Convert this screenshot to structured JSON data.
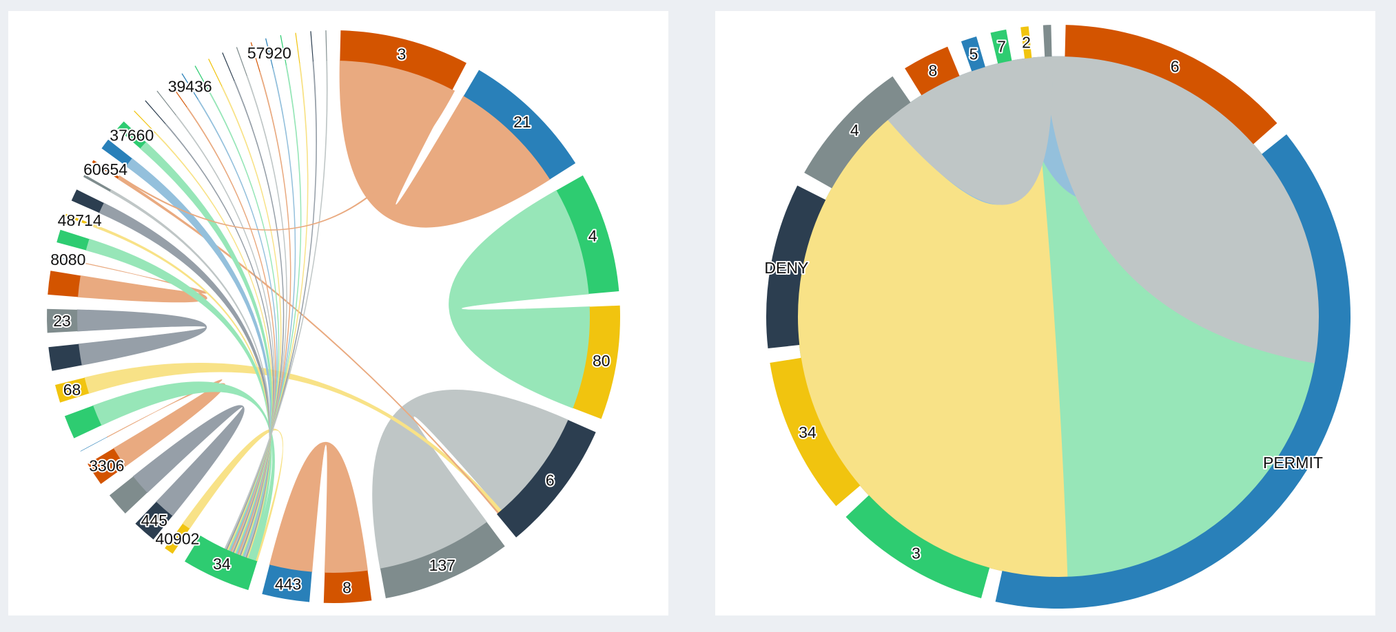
{
  "chart_data": [
    {
      "type": "chord",
      "groups": [
        {
          "label": "3",
          "value": 3.0,
          "color": "#d35400"
        },
        {
          "label": "21",
          "value": 3.1,
          "color": "#2980b9"
        },
        {
          "label": "4",
          "value": 2.8,
          "color": "#2ecc71"
        },
        {
          "label": "80",
          "value": 2.65,
          "color": "#f1c40f"
        },
        {
          "label": "6",
          "value": 3.05,
          "color": "#2c3e50"
        },
        {
          "label": "137",
          "value": 3.0,
          "color": "#7f8c8d"
        },
        {
          "label": "8",
          "value": 1.1,
          "color": "#d35400"
        },
        {
          "label": "443",
          "value": 1.1,
          "color": "#2980b9"
        },
        {
          "label": "34",
          "value": 1.6,
          "color": "#2ecc71"
        },
        {
          "label": "40902",
          "value": 0.22,
          "color": "#f1c40f"
        },
        {
          "label": "445",
          "value": 0.55,
          "color": "#2c3e50"
        },
        {
          "label": "",
          "value": 0.55,
          "color": "#7f8c8d"
        },
        {
          "label": "3306",
          "value": 0.55,
          "color": "#d35400"
        },
        {
          "label": "",
          "value": 0.01,
          "color": "#2980b9"
        },
        {
          "label": "",
          "value": 0.55,
          "color": "#2ecc71"
        },
        {
          "label": "68",
          "value": 0.42,
          "color": "#f1c40f"
        },
        {
          "label": "",
          "value": 0.55,
          "color": "#2c3e50"
        },
        {
          "label": "23",
          "value": 0.55,
          "color": "#7f8c8d"
        },
        {
          "label": "",
          "value": 0.55,
          "color": "#d35400"
        },
        {
          "label": "8080",
          "value": 0.01,
          "color": "#2980b9"
        },
        {
          "label": "",
          "value": 0.3,
          "color": "#2ecc71"
        },
        {
          "label": "48714",
          "value": 0.06,
          "color": "#f1c40f"
        },
        {
          "label": "",
          "value": 0.28,
          "color": "#2c3e50"
        },
        {
          "label": "",
          "value": 0.06,
          "color": "#7f8c8d"
        },
        {
          "label": "60654",
          "value": 0.06,
          "color": "#d35400"
        },
        {
          "label": "",
          "value": 0.25,
          "color": "#2980b9"
        },
        {
          "label": "37660",
          "value": 0.22,
          "color": "#2ecc71"
        },
        {
          "label": "",
          "value": 0.02,
          "color": "#f1c40f"
        },
        {
          "label": "",
          "value": 0.02,
          "color": "#2c3e50"
        },
        {
          "label": "",
          "value": 0.02,
          "color": "#7f8c8d"
        },
        {
          "label": "",
          "value": 0.02,
          "color": "#d35400"
        },
        {
          "label": "39436",
          "value": 0.02,
          "color": "#2980b9"
        },
        {
          "label": "",
          "value": 0.02,
          "color": "#2ecc71"
        },
        {
          "label": "",
          "value": 0.02,
          "color": "#f1c40f"
        },
        {
          "label": "",
          "value": 0.02,
          "color": "#2c3e50"
        },
        {
          "label": "",
          "value": 0.02,
          "color": "#7f8c8d"
        },
        {
          "label": "",
          "value": 0.02,
          "color": "#d35400"
        },
        {
          "label": "57920",
          "value": 0.02,
          "color": "#2980b9"
        },
        {
          "label": "",
          "value": 0.02,
          "color": "#2ecc71"
        },
        {
          "label": "",
          "value": 0.02,
          "color": "#f1c40f"
        },
        {
          "label": "",
          "value": 0.02,
          "color": "#2c3e50"
        },
        {
          "label": "",
          "value": 0.02,
          "color": "#7f8c8d"
        }
      ],
      "chords": [
        {
          "source": 0,
          "source_share": 1.0,
          "target": 1,
          "target_share": 1.0
        },
        {
          "source": 2,
          "source_share": 1.0,
          "target": 3,
          "target_share": 1.0
        },
        {
          "source": 5,
          "source_share": 1.0,
          "target": 4,
          "target_share": 0.95
        },
        {
          "source": 6,
          "source_share": 1.0,
          "target": 7,
          "target_share": 1.0
        },
        {
          "source": 9,
          "source_share": 1.0,
          "target": 8,
          "target_share": 0.03
        },
        {
          "source": 10,
          "source_share": 1.0,
          "target": 11,
          "target_share": 1.0
        },
        {
          "source": 12,
          "source_share": 1.0,
          "target": 13,
          "target_share": 1.0
        },
        {
          "source": 14,
          "source_share": 1.0,
          "target": 8,
          "target_share": 0.08
        },
        {
          "source": 15,
          "source_share": 1.0,
          "target": 4,
          "target_share": 0.03
        },
        {
          "source": 16,
          "source_share": 1.0,
          "target": 17,
          "target_share": 1.0
        },
        {
          "source": 18,
          "source_share": 1.0,
          "target": 19,
          "target_share": 1.0
        },
        {
          "source": 20,
          "source_share": 1.0,
          "target": 8,
          "target_share": 0.05
        },
        {
          "source": 21,
          "source_share": 1.0,
          "target": 8,
          "target_share": 0.02
        },
        {
          "source": 22,
          "source_share": 1.0,
          "target": 8,
          "target_share": 0.02
        },
        {
          "source": 23,
          "source_share": 1.0,
          "target": 8,
          "target_share": 0.02
        },
        {
          "source": 24,
          "source_share": 1.0,
          "target": 4,
          "target_share": 0.01
        },
        {
          "source": 25,
          "source_share": 1.0,
          "target": 8,
          "target_share": 0.02
        },
        {
          "source": 26,
          "source_share": 1.0,
          "target": 8,
          "target_share": 0.02
        },
        {
          "source": 27,
          "source_share": 1.0,
          "target": 8,
          "target_share": 0.02
        },
        {
          "source": 28,
          "source_share": 1.0,
          "target": 8,
          "target_share": 0.02
        },
        {
          "source": 29,
          "source_share": 1.0,
          "target": 8,
          "target_share": 0.02
        },
        {
          "source": 30,
          "source_share": 1.0,
          "target": 8,
          "target_share": 0.02
        },
        {
          "source": 31,
          "source_share": 1.0,
          "target": 8,
          "target_share": 0.02
        },
        {
          "source": 32,
          "source_share": 1.0,
          "target": 8,
          "target_share": 0.02
        },
        {
          "source": 33,
          "source_share": 1.0,
          "target": 8,
          "target_share": 0.02
        },
        {
          "source": 34,
          "source_share": 1.0,
          "target": 8,
          "target_share": 0.02
        },
        {
          "source": 35,
          "source_share": 1.0,
          "target": 8,
          "target_share": 0.02
        },
        {
          "source": 36,
          "source_share": 1.0,
          "target": 8,
          "target_share": 0.02
        },
        {
          "source": 37,
          "source_share": 1.0,
          "target": 8,
          "target_share": 0.02
        },
        {
          "source": 38,
          "source_share": 1.0,
          "target": 8,
          "target_share": 0.02
        },
        {
          "source": 39,
          "source_share": 1.0,
          "target": 8,
          "target_share": 0.02
        },
        {
          "source": 40,
          "source_share": 1.0,
          "target": 8,
          "target_share": 0.02
        },
        {
          "source": 41,
          "source_share": 1.0,
          "target": 8,
          "target_share": 0.02
        },
        {
          "source": 24,
          "source_share": 0.5,
          "target": 0,
          "target_share": 0.02
        }
      ]
    },
    {
      "type": "chord",
      "groups": [
        {
          "label": "6",
          "value": 3.0,
          "color": "#d35400"
        },
        {
          "label": "PERMIT",
          "value": 9.0,
          "color": "#2980b9"
        },
        {
          "label": "3",
          "value": 2.0,
          "color": "#2ecc71"
        },
        {
          "label": "34",
          "value": 2.0,
          "color": "#f1c40f"
        },
        {
          "label": "DENY",
          "value": 2.1,
          "color": "#2c3e50"
        },
        {
          "label": "4",
          "value": 1.65,
          "color": "#7f8c8d"
        },
        {
          "label": "8",
          "value": 0.6,
          "color": "#d35400"
        },
        {
          "label": "5",
          "value": 0.2,
          "color": "#2980b9"
        },
        {
          "label": "7",
          "value": 0.2,
          "color": "#2ecc71"
        },
        {
          "label": "2",
          "value": 0.1,
          "color": "#f1c40f"
        },
        {
          "label": "",
          "value": 0.1,
          "color": "#7f8c8d"
        }
      ],
      "chords": [
        {
          "source": 0,
          "source_share": 1.0,
          "target": 1,
          "target_share": 1.0
        },
        {
          "source": 2,
          "source_share": 1.0,
          "target": 1,
          "target_share": 1.0
        },
        {
          "source": 3,
          "source_share": 1.0,
          "target": 4,
          "target_share": 1.0
        },
        {
          "source": 5,
          "source_share": 1.0,
          "target": 1,
          "target_share": 1.0
        },
        {
          "source": 6,
          "source_share": 1.0,
          "target": 1,
          "target_share": 1.0
        },
        {
          "source": 7,
          "source_share": 1.0,
          "target": 1,
          "target_share": 1.0
        },
        {
          "source": 8,
          "source_share": 1.0,
          "target": 1,
          "target_share": 1.0
        },
        {
          "source": 9,
          "source_share": 1.0,
          "target": 1,
          "target_share": 1.0
        },
        {
          "source": 10,
          "source_share": 1.0,
          "target": 1,
          "target_share": 1.0
        }
      ]
    }
  ]
}
